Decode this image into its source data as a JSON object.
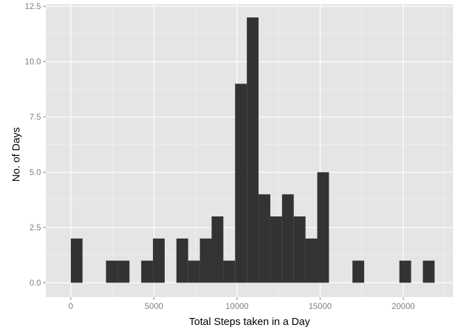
{
  "chart_data": {
    "type": "bar",
    "title": "",
    "xlabel": "Total Steps taken in a Day",
    "ylabel": "No. of Days",
    "xlim": [
      -1500,
      23000
    ],
    "ylim": [
      -0.65,
      12.6
    ],
    "x_ticks": [
      0,
      5000,
      10000,
      15000,
      20000
    ],
    "x_tick_labels": [
      "0",
      "5000",
      "10000",
      "15000",
      "20000"
    ],
    "y_ticks": [
      0,
      2.5,
      5,
      7.5,
      10,
      12.5
    ],
    "y_tick_labels": [
      "0.0",
      "2.5",
      "5.0",
      "7.5",
      "10.0",
      "12.5"
    ],
    "grid": true,
    "bin_width": 706,
    "bins": [
      {
        "start": 0,
        "end": 706,
        "count": 2
      },
      {
        "start": 2118,
        "end": 2824,
        "count": 1
      },
      {
        "start": 2824,
        "end": 3530,
        "count": 1
      },
      {
        "start": 4236,
        "end": 4942,
        "count": 1
      },
      {
        "start": 4942,
        "end": 5648,
        "count": 2
      },
      {
        "start": 6354,
        "end": 7060,
        "count": 2
      },
      {
        "start": 7060,
        "end": 7766,
        "count": 1
      },
      {
        "start": 7766,
        "end": 8472,
        "count": 2
      },
      {
        "start": 8472,
        "end": 9178,
        "count": 3
      },
      {
        "start": 9178,
        "end": 9884,
        "count": 1
      },
      {
        "start": 9884,
        "end": 10590,
        "count": 9
      },
      {
        "start": 10590,
        "end": 11296,
        "count": 12
      },
      {
        "start": 11296,
        "end": 12002,
        "count": 4
      },
      {
        "start": 12002,
        "end": 12708,
        "count": 3
      },
      {
        "start": 12708,
        "end": 13414,
        "count": 4
      },
      {
        "start": 13414,
        "end": 14120,
        "count": 3
      },
      {
        "start": 14120,
        "end": 14826,
        "count": 2
      },
      {
        "start": 14826,
        "end": 15532,
        "count": 5
      },
      {
        "start": 16944,
        "end": 17650,
        "count": 1
      },
      {
        "start": 19768,
        "end": 20474,
        "count": 1
      },
      {
        "start": 21180,
        "end": 21886,
        "count": 1
      }
    ],
    "colors": {
      "panel_background": "#e5e5e5",
      "grid_major": "#ffffff",
      "grid_minor": "#f2f2f2",
      "bar_fill": "#333333",
      "tick_label": "#7f7f7f"
    }
  }
}
